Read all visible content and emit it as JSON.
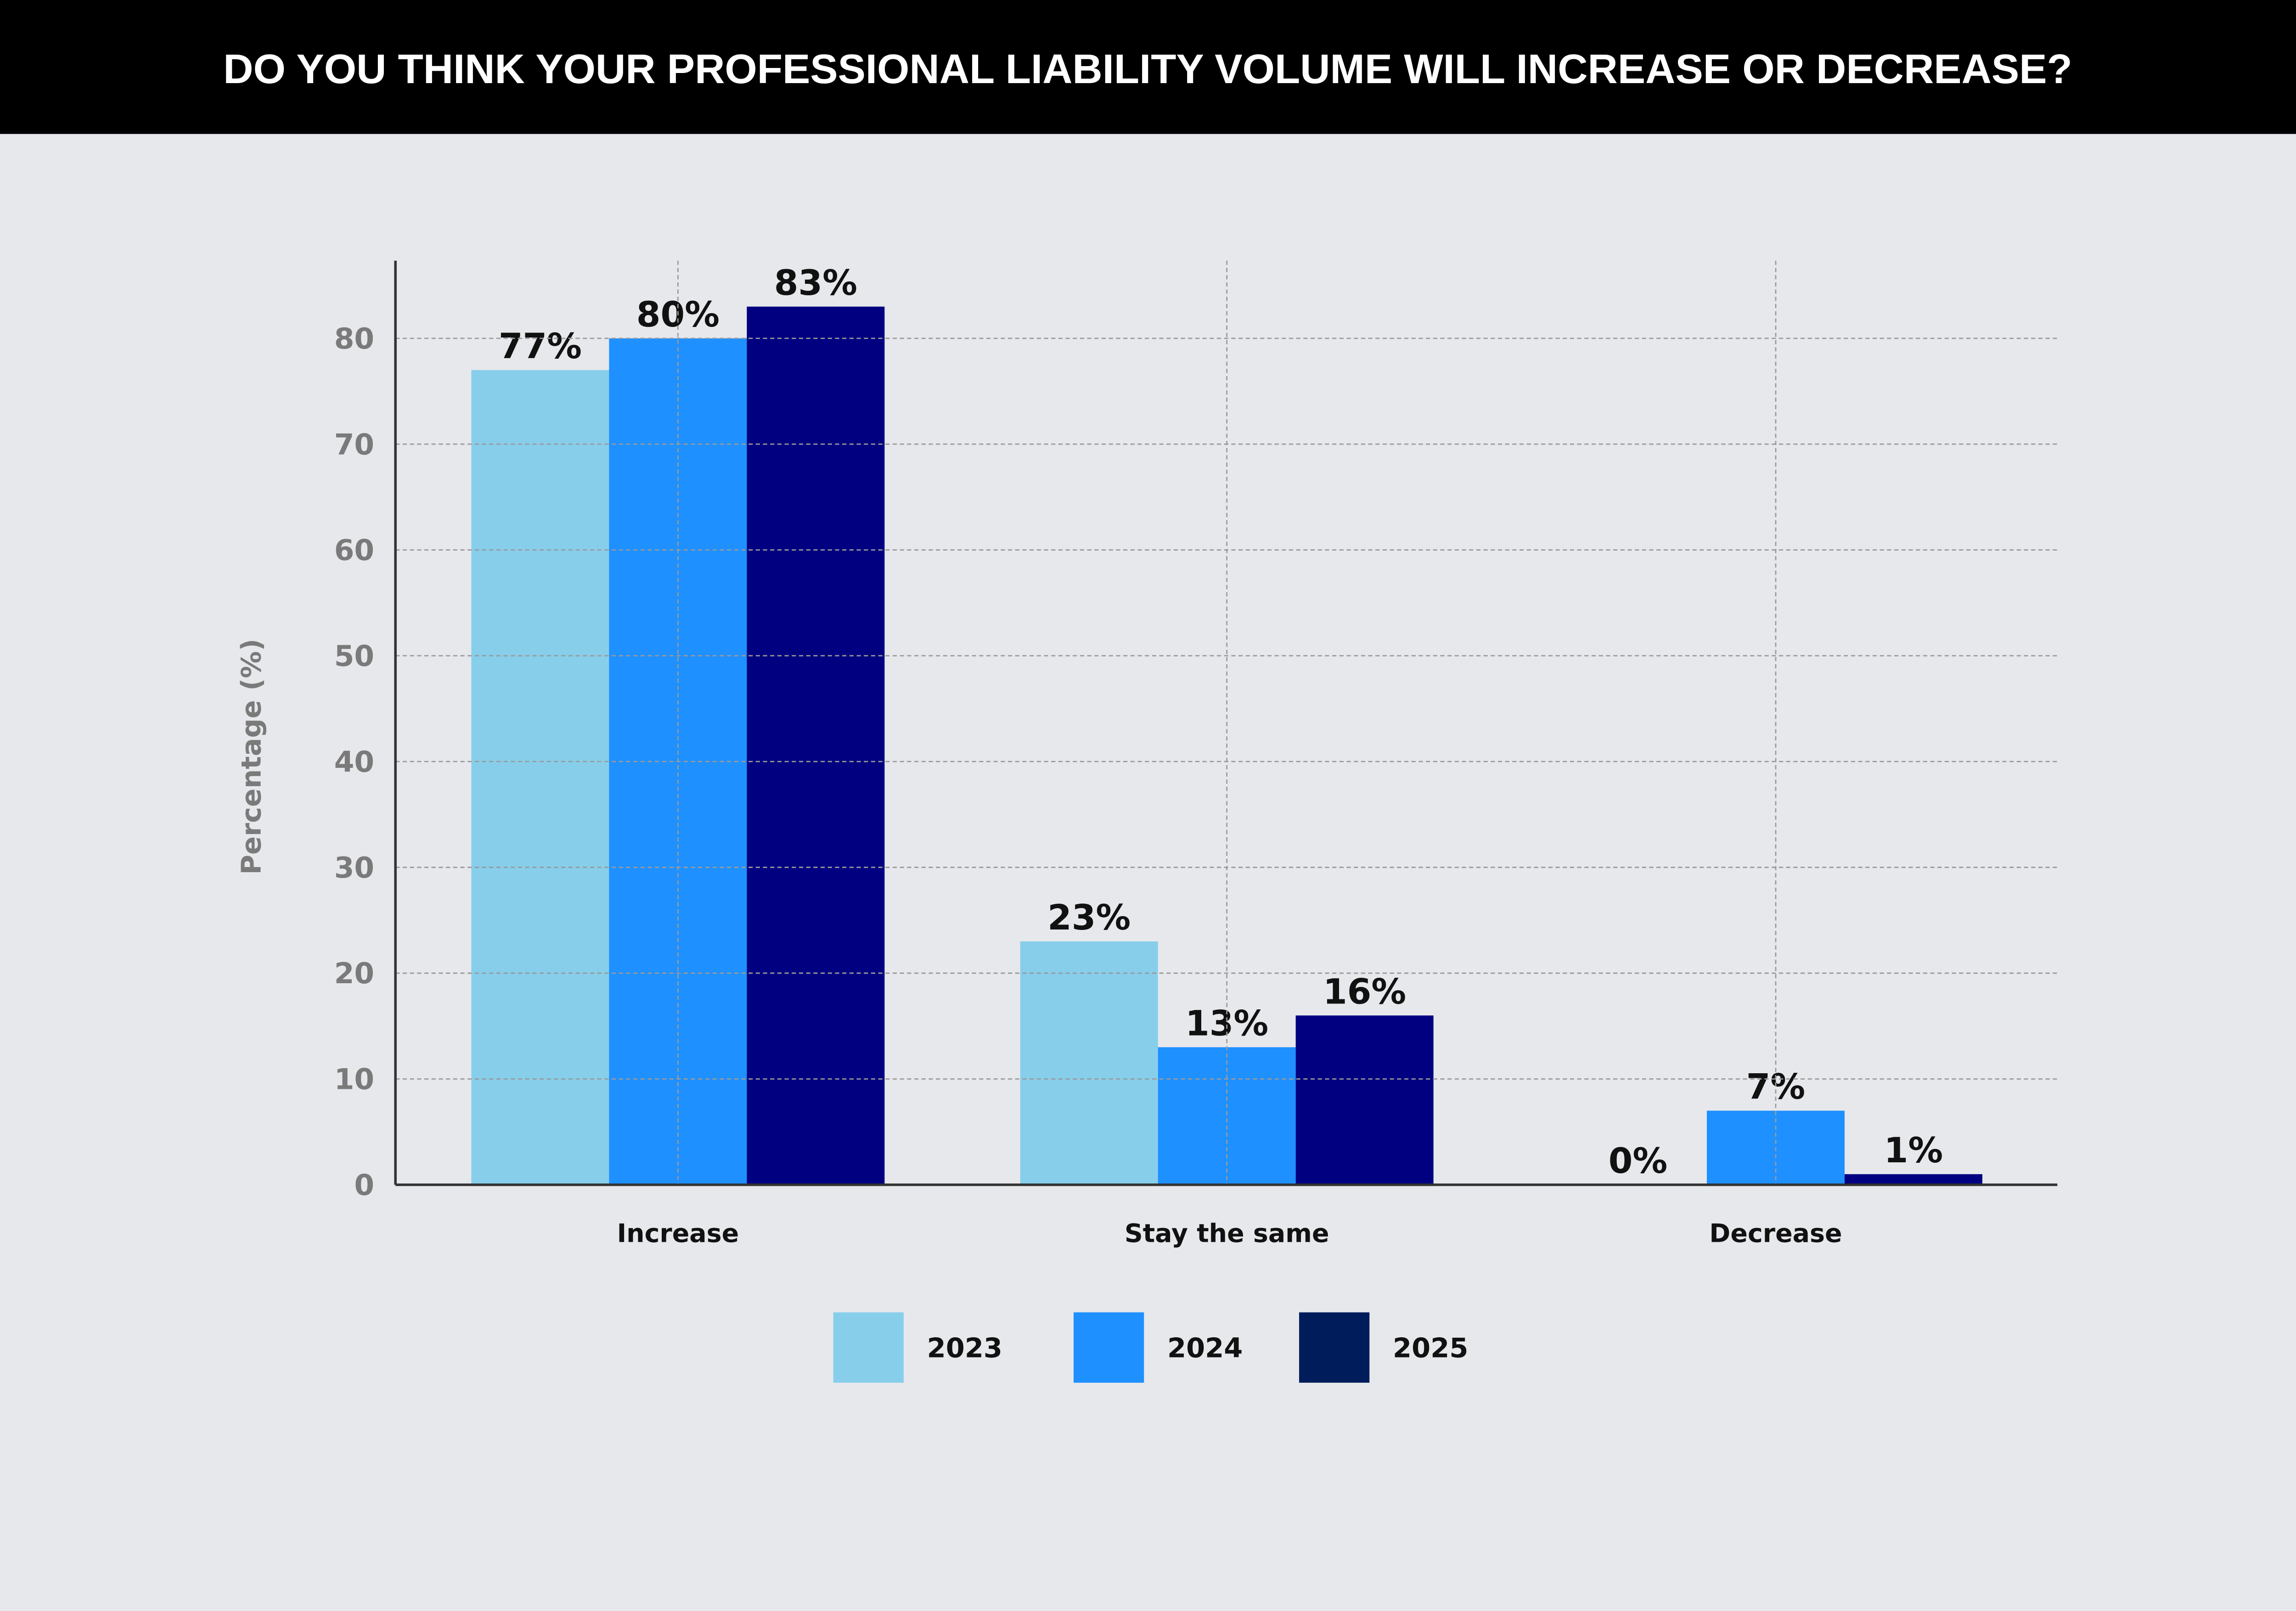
{
  "chart_data": {
    "type": "bar",
    "title": "DO YOU THINK YOUR PROFESSIONAL LIABILITY VOLUME WILL INCREASE OR DECREASE?",
    "xlabel": "",
    "ylabel": "Percentage (%)",
    "ylim": [
      0,
      87
    ],
    "yticks": [
      0,
      10,
      20,
      30,
      40,
      50,
      60,
      70,
      80
    ],
    "grid": true,
    "categories": [
      "Increase",
      "Stay the same",
      "Decrease"
    ],
    "series": [
      {
        "name": "2023",
        "color": "#87CEEB",
        "legend_color": "#87CEEB",
        "values": [
          77,
          23,
          0
        ],
        "labels": [
          "77%",
          "23%",
          "0%"
        ]
      },
      {
        "name": "2024",
        "color": "#1E90FF",
        "legend_color": "#1E90FF",
        "values": [
          80,
          13,
          7
        ],
        "labels": [
          "80%",
          "13%",
          "7%"
        ]
      },
      {
        "name": "2025",
        "color": "#000080",
        "legend_color": "#001C5B",
        "values": [
          83,
          16,
          1
        ],
        "labels": [
          "83%",
          "16%",
          "1%"
        ]
      }
    ],
    "legend_position": "bottom-center"
  }
}
